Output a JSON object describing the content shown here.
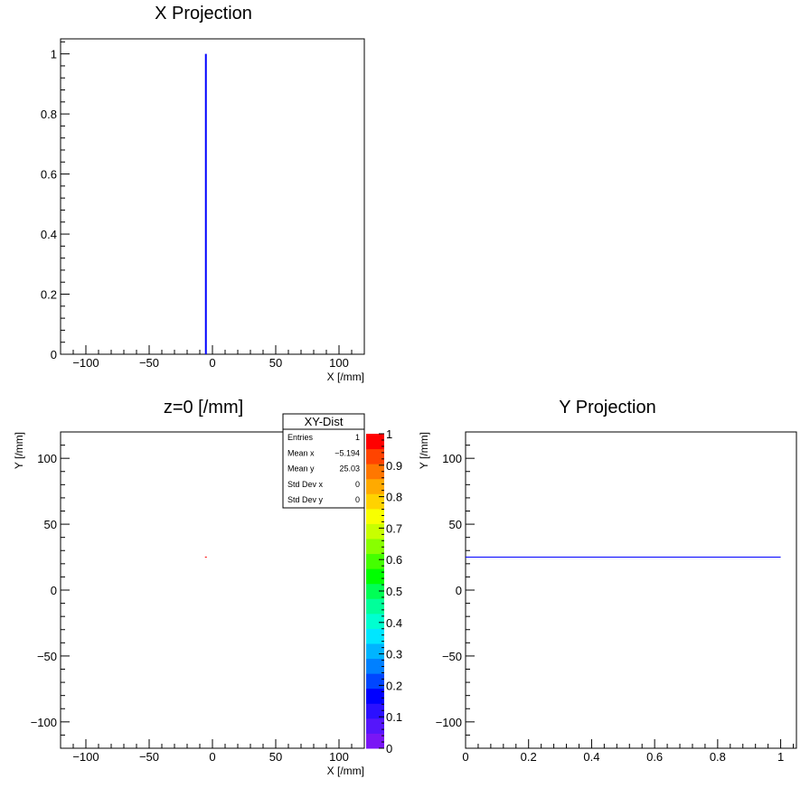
{
  "chart_data": [
    {
      "id": "xproj",
      "type": "line",
      "title": "X Projection",
      "xlabel": "X [/mm]",
      "ylabel": "",
      "xlim": [
        -120,
        120
      ],
      "ylim": [
        0,
        1.05
      ],
      "xticks": [
        -100,
        -50,
        0,
        50,
        100
      ],
      "xtick_labels": [
        "−100",
        "−50",
        "0",
        "50",
        "100"
      ],
      "yticks": [
        0,
        0.2,
        0.4,
        0.6,
        0.8,
        1
      ],
      "ytick_labels": [
        "0",
        "0.2",
        "0.4",
        "0.6",
        "0.8",
        "1"
      ],
      "series": [
        {
          "x": [
            -5.194,
            -5.194
          ],
          "y": [
            0,
            1
          ],
          "color": "#0000ff"
        }
      ]
    },
    {
      "id": "xydist",
      "type": "heatmap",
      "title": "z=0 [/mm]",
      "xlabel": "X [/mm]",
      "ylabel": "Y [/mm]",
      "xlim": [
        -120,
        120
      ],
      "ylim": [
        -120,
        120
      ],
      "xticks": [
        -100,
        -50,
        0,
        50,
        100
      ],
      "xtick_labels": [
        "−100",
        "−50",
        "0",
        "50",
        "100"
      ],
      "yticks": [
        -100,
        -50,
        0,
        50,
        100
      ],
      "ytick_labels": [
        "−100",
        "−50",
        "0",
        "50",
        "100"
      ],
      "points": [
        {
          "x": -5.194,
          "y": 25.03,
          "value": 1
        }
      ],
      "colorbar": {
        "ticks": [
          0,
          0.1,
          0.2,
          0.3,
          0.4,
          0.5,
          0.6,
          0.7,
          0.8,
          0.9,
          1
        ],
        "tick_labels": [
          "0",
          "0.1",
          "0.2",
          "0.3",
          "0.4",
          "0.5",
          "0.6",
          "0.7",
          "0.8",
          "0.9",
          "1"
        ],
        "colors": [
          "#7a16f5",
          "#5516fb",
          "#2b10ff",
          "#0000ff",
          "#0046ff",
          "#0080ff",
          "#00b4ff",
          "#00e6ff",
          "#00ffd0",
          "#00ff9a",
          "#00ff55",
          "#00ff00",
          "#44ff00",
          "#88ff00",
          "#c8ff00",
          "#f8ff00",
          "#ffd200",
          "#ffaa00",
          "#ff7700",
          "#ff4400",
          "#ff0000"
        ]
      },
      "stats": {
        "title": "XY-Dist",
        "rows": [
          {
            "label": "Entries",
            "value": "1"
          },
          {
            "label": "Mean x",
            "value": "−5.194"
          },
          {
            "label": "Mean y",
            "value": "25.03"
          },
          {
            "label": "Std Dev x",
            "value": "0"
          },
          {
            "label": "Std Dev y",
            "value": "0"
          }
        ]
      }
    },
    {
      "id": "yproj",
      "type": "line",
      "title": "Y Projection",
      "xlabel": "",
      "ylabel": "Y [/mm]",
      "xlim": [
        0,
        1.05
      ],
      "ylim": [
        -120,
        120
      ],
      "xticks": [
        0,
        0.2,
        0.4,
        0.6,
        0.8,
        1
      ],
      "xtick_labels": [
        "0",
        "0.2",
        "0.4",
        "0.6",
        "0.8",
        "1"
      ],
      "yticks": [
        -100,
        -50,
        0,
        50,
        100
      ],
      "ytick_labels": [
        "−100",
        "−50",
        "0",
        "50",
        "100"
      ],
      "series": [
        {
          "x": [
            0,
            1
          ],
          "y": [
            25.03,
            25.03
          ],
          "color": "#0000ff"
        }
      ]
    }
  ]
}
